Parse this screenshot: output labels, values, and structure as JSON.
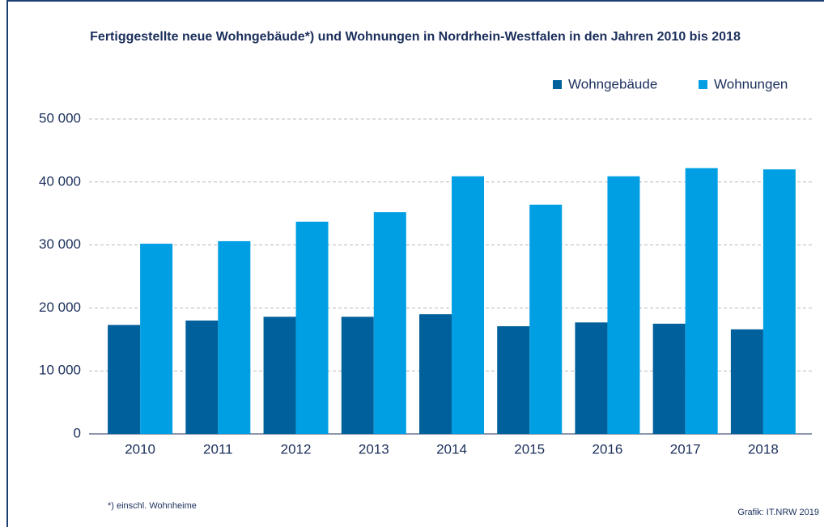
{
  "chart_data": {
    "type": "bar",
    "title": "Fertiggestellte neue Wohngebäude*) und Wohnungen in Nordrhein-Westfalen in den Jahren 2010 bis 2018",
    "categories": [
      "2010",
      "2011",
      "2012",
      "2013",
      "2014",
      "2015",
      "2016",
      "2017",
      "2018"
    ],
    "series": [
      {
        "name": "Wohngebäude",
        "color": "#00609c",
        "values": [
          17300,
          18000,
          18600,
          18600,
          19000,
          17100,
          17700,
          17500,
          16600
        ]
      },
      {
        "name": "Wohnungen",
        "color": "#009fe3",
        "values": [
          30200,
          30600,
          33700,
          35200,
          40900,
          36400,
          40900,
          42200,
          42000
        ]
      }
    ],
    "ylim": [
      0,
      50000
    ],
    "yticks": [
      0,
      {
        "value": 10000,
        "label": "10 000"
      },
      {
        "value": 20000,
        "label": "20 000"
      },
      {
        "value": 30000,
        "label": "30 000"
      },
      {
        "value": 40000,
        "label": "40 000"
      },
      {
        "value": 50000,
        "label": "50 000"
      }
    ],
    "grid": true,
    "legend": "top-right",
    "footnote": "*) einschl. Wohnheime",
    "source": "Grafik: IT.NRW 2019"
  }
}
